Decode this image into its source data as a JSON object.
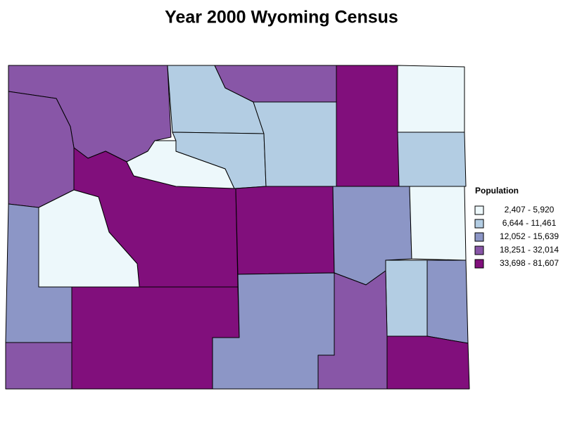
{
  "title": "Year 2000 Wyoming Census",
  "legend": {
    "title": "Population",
    "items": [
      {
        "label": "2,407 - 5,920",
        "color": "#edf8fb"
      },
      {
        "label": "6,644 - 11,461",
        "color": "#b3cde3"
      },
      {
        "label": "12,052 - 15,639",
        "color": "#8c96c6"
      },
      {
        "label": "18,251 - 32,014",
        "color": "#8856a7"
      },
      {
        "label": "33,698 - 81,607",
        "color": "#810f7c"
      }
    ]
  }
}
